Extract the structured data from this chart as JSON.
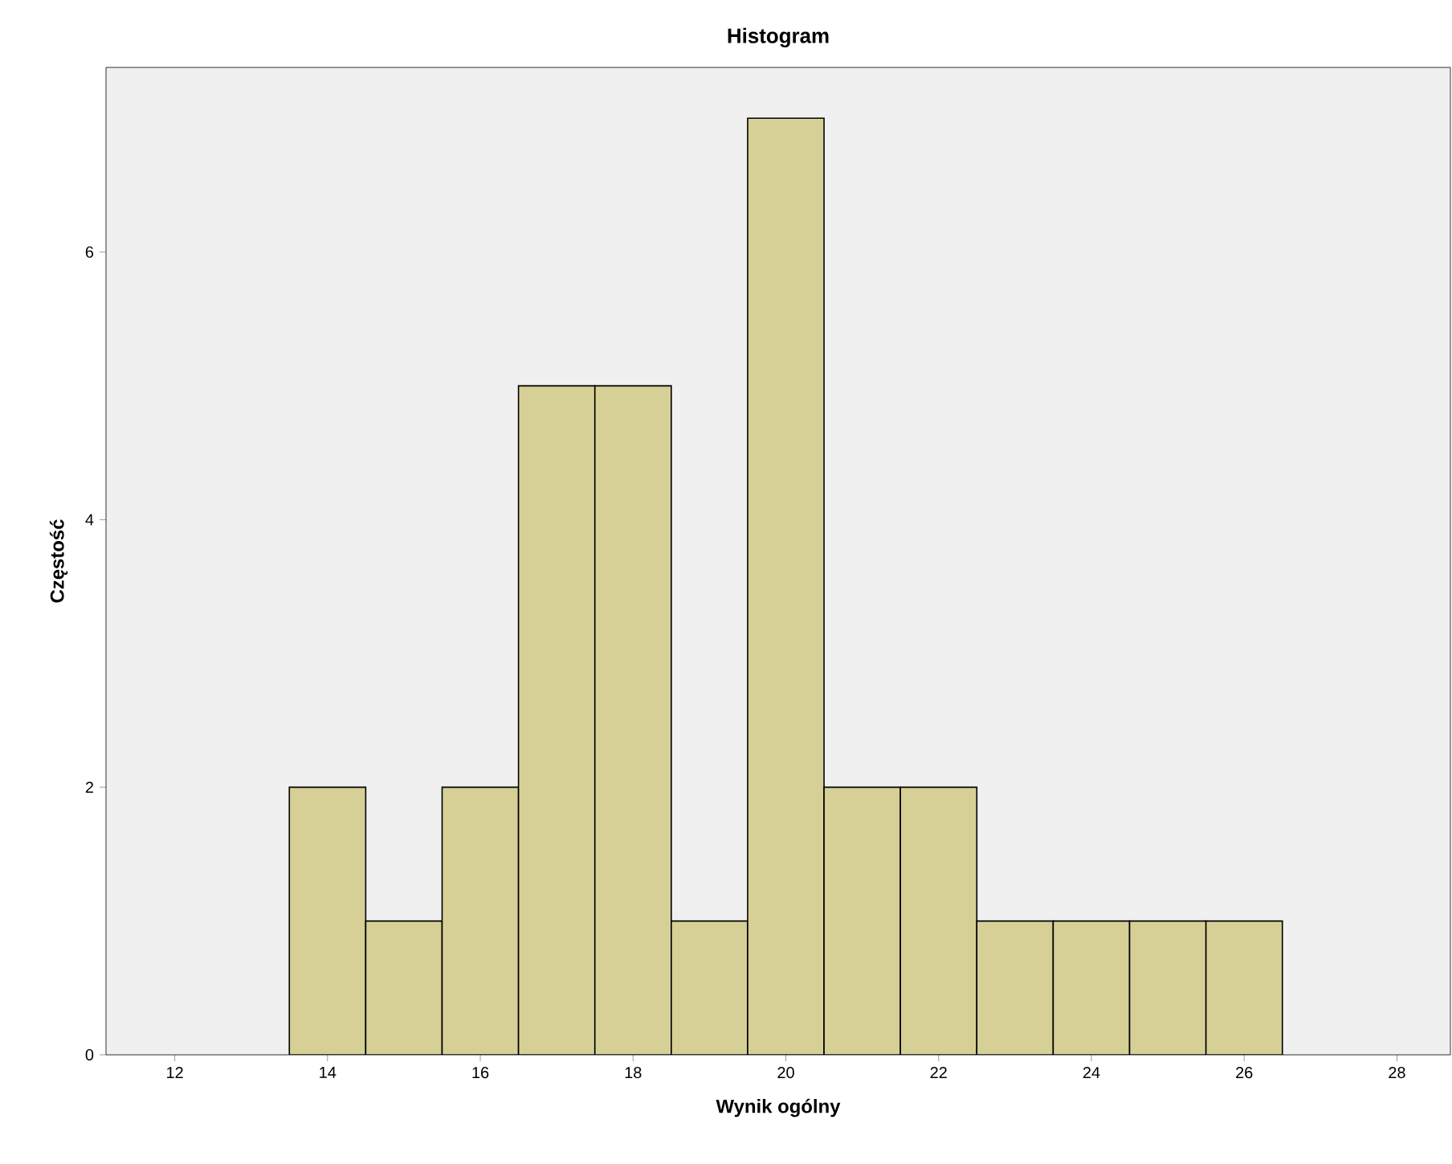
{
  "chart_data": {
    "type": "histogram",
    "title": "Histogram",
    "xlabel": "Wynik ogólny",
    "ylabel": "Częstość",
    "bins": [
      13.5,
      14.5,
      15.5,
      16.5,
      17.5,
      18.5,
      19.5,
      20.5,
      21.5,
      22.5,
      23.5,
      24.5,
      25.5,
      26.5
    ],
    "values": [
      2,
      1,
      2,
      5,
      5,
      1,
      7,
      2,
      2,
      1,
      1,
      1,
      1
    ],
    "color": "#d6d096",
    "xlim": [
      11.1,
      28.7
    ],
    "ylim": [
      0,
      7.38
    ],
    "xticks": [
      12,
      14,
      16,
      18,
      20,
      22,
      24,
      26,
      28
    ],
    "yticks": [
      0,
      2,
      4,
      6
    ],
    "grid": false
  }
}
